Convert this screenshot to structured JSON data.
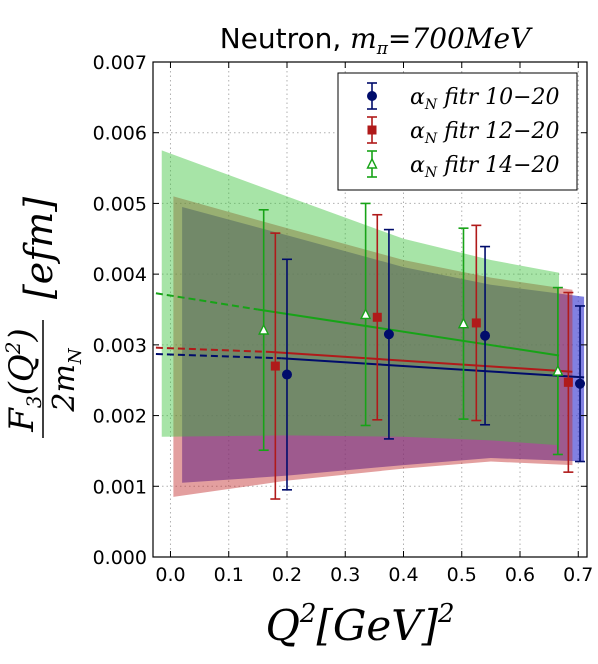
{
  "chart_data": {
    "type": "scatter",
    "title": "Neutron, m_π=700MeV",
    "title_main": "Neutron, ",
    "title_math": "m",
    "title_sub": "π",
    "title_rest": "=700MeV",
    "xlabel_parts": [
      "Q",
      "2",
      "[GeV]",
      "2"
    ],
    "ylabel_parts": [
      "F",
      "3",
      "(Q",
      "2",
      ")",
      "2m",
      "N",
      "[efm]"
    ],
    "xlim": [
      -0.03,
      0.715
    ],
    "ylim": [
      0.0,
      0.007
    ],
    "xticks": [
      0.0,
      0.1,
      0.2,
      0.3,
      0.4,
      0.5,
      0.6,
      0.7
    ],
    "xtick_labels": [
      "0.0",
      "0.1",
      "0.2",
      "0.3",
      "0.4",
      "0.5",
      "0.6",
      "0.7"
    ],
    "yticks": [
      0.0,
      0.001,
      0.002,
      0.003,
      0.004,
      0.005,
      0.006,
      0.007
    ],
    "ytick_labels": [
      "0.000",
      "0.001",
      "0.002",
      "0.003",
      "0.004",
      "0.005",
      "0.006",
      "0.007"
    ],
    "grid": true,
    "legend_position": "top-right",
    "series": [
      {
        "name": "α_N fitr 10−20",
        "legend_alpha": "α",
        "legend_sub": "N",
        "legend_text": " fitr 10−20",
        "color": "#000c6b",
        "band_color": "#3d3dd1",
        "marker": "circle",
        "points": [
          {
            "x": 0.2,
            "y": 0.00258,
            "err": 0.00163
          },
          {
            "x": 0.375,
            "y": 0.00315,
            "err": 0.00148
          },
          {
            "x": 0.54,
            "y": 0.00313,
            "err": 0.00126
          },
          {
            "x": 0.703,
            "y": 0.00245,
            "err": 0.0011
          }
        ],
        "fit_range": [
          0.19,
          0.71
        ],
        "fit_y": [
          0.00281,
          0.00254
        ],
        "extrap_y0": 0.00287,
        "band_lower": [
          [
            0.02,
            0.00105
          ],
          [
            0.2,
            0.00115
          ],
          [
            0.4,
            0.0013
          ],
          [
            0.55,
            0.0014
          ],
          [
            0.71,
            0.00135
          ]
        ],
        "band_upper": [
          [
            0.02,
            0.00495
          ],
          [
            0.2,
            0.00455
          ],
          [
            0.4,
            0.0041
          ],
          [
            0.55,
            0.00385
          ],
          [
            0.71,
            0.00368
          ]
        ]
      },
      {
        "name": "α_N fitr 12−20",
        "legend_alpha": "α",
        "legend_sub": "N",
        "legend_text": " fitr 12−20",
        "color": "#b01a1a",
        "band_color": "#c22b2b",
        "marker": "square",
        "points": [
          {
            "x": 0.18,
            "y": 0.0027,
            "err": 0.00188
          },
          {
            "x": 0.355,
            "y": 0.00339,
            "err": 0.00145
          },
          {
            "x": 0.525,
            "y": 0.00331,
            "err": 0.00138
          },
          {
            "x": 0.683,
            "y": 0.00247,
            "err": 0.00127
          }
        ],
        "fit_range": [
          0.17,
          0.69
        ],
        "fit_y": [
          0.0029,
          0.00262
        ],
        "extrap_y0": 0.00296,
        "band_lower": [
          [
            0.005,
            0.00085
          ],
          [
            0.2,
            0.00108
          ],
          [
            0.4,
            0.00125
          ],
          [
            0.55,
            0.00135
          ],
          [
            0.69,
            0.0013
          ]
        ],
        "band_upper": [
          [
            0.005,
            0.0051
          ],
          [
            0.2,
            0.00465
          ],
          [
            0.4,
            0.0042
          ],
          [
            0.55,
            0.00395
          ],
          [
            0.69,
            0.00378
          ]
        ]
      },
      {
        "name": "α_N fitr 14−20",
        "legend_alpha": "α",
        "legend_sub": "N",
        "legend_text": " fitr 14−20",
        "color": "#17a317",
        "band_color": "#3cc43c",
        "marker": "triangle",
        "points": [
          {
            "x": 0.16,
            "y": 0.00321,
            "err": 0.0017
          },
          {
            "x": 0.335,
            "y": 0.00343,
            "err": 0.00157
          },
          {
            "x": 0.503,
            "y": 0.0033,
            "err": 0.00135
          },
          {
            "x": 0.665,
            "y": 0.00263,
            "err": 0.00118
          }
        ],
        "fit_range": [
          0.15,
          0.667
        ],
        "fit_y": [
          0.0035,
          0.00285
        ],
        "extrap_y0": 0.00373,
        "band_lower": [
          [
            -0.015,
            0.0017
          ],
          [
            0.2,
            0.00172
          ],
          [
            0.4,
            0.0017
          ],
          [
            0.55,
            0.00165
          ],
          [
            0.667,
            0.00158
          ]
        ],
        "band_upper": [
          [
            -0.015,
            0.00575
          ],
          [
            0.2,
            0.0051
          ],
          [
            0.4,
            0.0045
          ],
          [
            0.55,
            0.0042
          ],
          [
            0.667,
            0.00402
          ]
        ]
      }
    ]
  }
}
